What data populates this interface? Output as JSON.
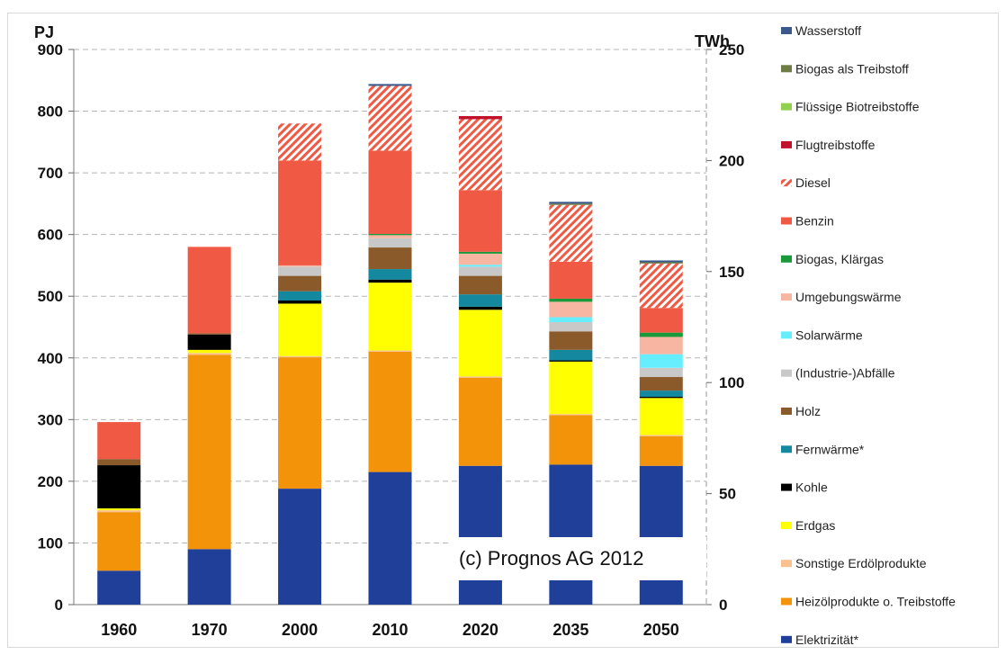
{
  "chart_data": {
    "type": "bar",
    "stacked": true,
    "y_left_label": "PJ",
    "y_right_label": "TWh",
    "ylim": [
      0,
      900
    ],
    "y_right_lim": [
      0,
      250
    ],
    "y_ticks": [
      0,
      100,
      200,
      300,
      400,
      500,
      600,
      700,
      800,
      900
    ],
    "y_right_ticks": [
      0,
      50,
      100,
      150,
      200,
      250
    ],
    "grid": "dashed-horizontal",
    "legend_position": "right",
    "categories": [
      "1960",
      "1970",
      "2000",
      "2010",
      "2020",
      "2035",
      "2050"
    ],
    "annotation": "(c) Prognos  AG 2012",
    "series": [
      {
        "name": "Elektrizität*",
        "color": "#1f3f99",
        "pattern": false,
        "values": [
          55,
          90,
          188,
          215,
          225,
          227,
          225
        ]
      },
      {
        "name": "Heizölprodukte o. Treibstoffe",
        "color": "#f29309",
        "pattern": false,
        "values": [
          95,
          315,
          213,
          195,
          143,
          80,
          48
        ]
      },
      {
        "name": "Sonstige Erdölprodukte",
        "color": "#fac090",
        "pattern": false,
        "values": [
          3,
          3,
          2,
          2,
          2,
          2,
          2
        ]
      },
      {
        "name": "Erdgas",
        "color": "#ffff00",
        "pattern": false,
        "values": [
          3,
          5,
          85,
          110,
          108,
          85,
          60
        ]
      },
      {
        "name": "Kohle",
        "color": "#000000",
        "pattern": false,
        "values": [
          70,
          25,
          5,
          5,
          5,
          2,
          2
        ]
      },
      {
        "name": "Fernwärme*",
        "color": "#13889f",
        "pattern": false,
        "values": [
          0,
          0,
          15,
          17,
          20,
          17,
          10
        ]
      },
      {
        "name": "Holz",
        "color": "#8b5a2b",
        "pattern": false,
        "values": [
          10,
          2,
          25,
          35,
          30,
          30,
          22
        ]
      },
      {
        "name": "(Industrie-)Abfälle",
        "color": "#c8c8c8",
        "pattern": false,
        "values": [
          0,
          0,
          15,
          15,
          15,
          15,
          15
        ]
      },
      {
        "name": "Solarwärme",
        "color": "#66eeff",
        "pattern": false,
        "values": [
          0,
          0,
          0,
          0,
          3,
          8,
          22
        ]
      },
      {
        "name": "Umgebungswärme",
        "color": "#f7b6a2",
        "pattern": false,
        "values": [
          0,
          0,
          2,
          5,
          18,
          25,
          28
        ]
      },
      {
        "name": "Biogas, Klärgas",
        "color": "#1a9a3a",
        "pattern": false,
        "values": [
          0,
          0,
          0,
          2,
          3,
          5,
          7
        ]
      },
      {
        "name": "Benzin",
        "color": "#f05a44",
        "pattern": false,
        "values": [
          60,
          140,
          170,
          135,
          100,
          60,
          40
        ]
      },
      {
        "name": "Diesel",
        "color": "#f05a44",
        "pattern": true,
        "values": [
          0,
          0,
          60,
          105,
          115,
          92,
          72
        ]
      },
      {
        "name": "Flugtreibstoffe",
        "color": "#c0102a",
        "pattern": false,
        "values": [
          0,
          0,
          0,
          0,
          5,
          0,
          0
        ]
      },
      {
        "name": "Flüssige Biotreibstoffe",
        "color": "#92d050",
        "pattern": false,
        "values": [
          0,
          0,
          0,
          0,
          0,
          0,
          0
        ]
      },
      {
        "name": "Biogas als Treibstoff",
        "color": "#6e7d45",
        "pattern": false,
        "values": [
          0,
          0,
          0,
          0,
          0,
          2,
          2
        ]
      },
      {
        "name": "Wasserstoff",
        "color": "#3a5a8c",
        "pattern": false,
        "values": [
          0,
          0,
          0,
          3,
          0,
          3,
          3
        ]
      }
    ],
    "watermark_overlay_cols": [
      4,
      5,
      6
    ]
  }
}
